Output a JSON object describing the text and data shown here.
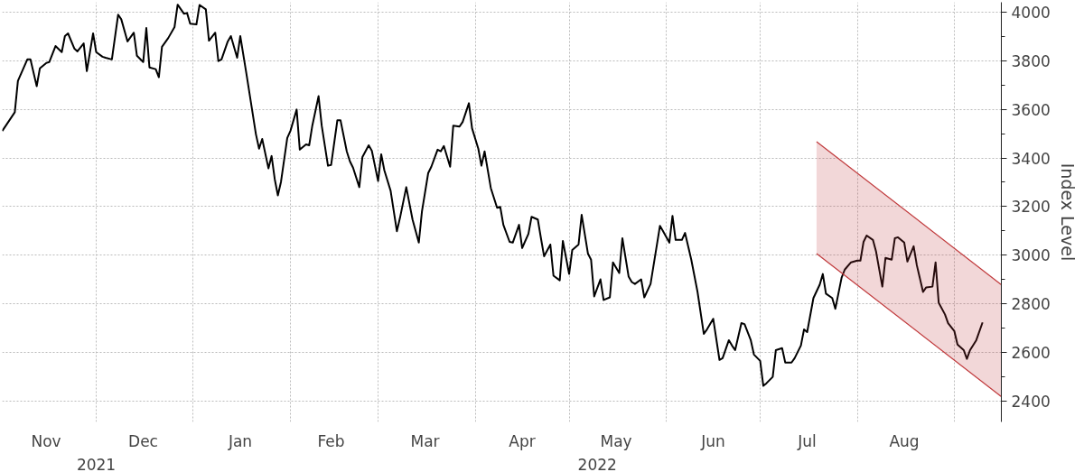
{
  "chart_data": {
    "type": "line",
    "ylabel": "Index Level",
    "xlim": [
      "2021-11-01",
      "2022-09-16"
    ],
    "ylim": [
      2315,
      4040
    ],
    "yticks": [
      2400,
      2600,
      2800,
      3000,
      3200,
      3400,
      3600,
      3800,
      4000
    ],
    "xticks": [
      {
        "value": "2021-12-01",
        "label": null
      },
      {
        "value": "2022-01-01",
        "label": null
      },
      {
        "value": "2022-02-01",
        "label": null
      },
      {
        "value": "2022-03-01",
        "label": null
      },
      {
        "value": "2022-04-01",
        "label": null
      },
      {
        "value": "2022-05-01",
        "label": null
      },
      {
        "value": "2022-06-01",
        "label": null
      },
      {
        "value": "2022-07-01",
        "label": null
      },
      {
        "value": "2022-08-01",
        "label": null
      },
      {
        "value": "2022-09-01",
        "label": null
      },
      {
        "value": "2021-11-15",
        "label": "Nov"
      },
      {
        "value": "2021-12-16",
        "label": "Dec"
      },
      {
        "value": "2022-01-16",
        "label": "Jan"
      },
      {
        "value": "2022-02-14",
        "label": "Feb"
      },
      {
        "value": "2022-03-16",
        "label": "Mar"
      },
      {
        "value": "2022-04-16",
        "label": "Apr"
      },
      {
        "value": "2022-05-16",
        "label": "May"
      },
      {
        "value": "2022-06-16",
        "label": "Jun"
      },
      {
        "value": "2022-07-16",
        "label": "Jul"
      },
      {
        "value": "2022-08-16",
        "label": "Aug"
      }
    ],
    "x2lim": [
      "2021-11-01",
      "2022-09-16"
    ],
    "x2ticks": [
      {
        "value": "2021-12-01",
        "label": "2021"
      },
      {
        "value": "2022-05-10",
        "label": "2022"
      }
    ],
    "grid": true,
    "series": [
      {
        "color": "#000000",
        "x": [
          "2021-11-01",
          "2021-11-05",
          "2021-11-06",
          "2021-11-09",
          "2021-11-10",
          "2021-11-12",
          "2021-11-13",
          "2021-11-15",
          "2021-11-16",
          "2021-11-18",
          "2021-11-20",
          "2021-11-21",
          "2021-11-22",
          "2021-11-24",
          "2021-11-25",
          "2021-11-27",
          "2021-11-28",
          "2021-11-30",
          "2021-12-01",
          "2021-12-03",
          "2021-12-04",
          "2021-12-06",
          "2021-12-08",
          "2021-12-09",
          "2021-12-11",
          "2021-12-13",
          "2021-12-14",
          "2021-12-16",
          "2021-12-17",
          "2021-12-18",
          "2021-12-20",
          "2021-12-21",
          "2021-12-22",
          "2021-12-24",
          "2021-12-26",
          "2021-12-27",
          "2021-12-29",
          "2021-12-30",
          "2021-12-31",
          "2022-01-02",
          "2022-01-03",
          "2022-01-05",
          "2022-01-06",
          "2022-01-08",
          "2022-01-09",
          "2022-01-10",
          "2022-01-12",
          "2022-01-13",
          "2022-01-15",
          "2022-01-16",
          "2022-01-18",
          "2022-01-21",
          "2022-01-22",
          "2022-01-23",
          "2022-01-25",
          "2022-01-26",
          "2022-01-27",
          "2022-01-28",
          "2022-01-29",
          "2022-01-31",
          "2022-02-01",
          "2022-02-03",
          "2022-02-04",
          "2022-02-06",
          "2022-02-07",
          "2022-02-08",
          "2022-02-10",
          "2022-02-11",
          "2022-02-13",
          "2022-02-14",
          "2022-02-16",
          "2022-02-17",
          "2022-02-19",
          "2022-02-20",
          "2022-02-21",
          "2022-02-23",
          "2022-02-24",
          "2022-02-26",
          "2022-02-27",
          "2022-03-01",
          "2022-03-02",
          "2022-03-03",
          "2022-03-05",
          "2022-03-07",
          "2022-03-08",
          "2022-03-10",
          "2022-03-11",
          "2022-03-12",
          "2022-03-14",
          "2022-03-15",
          "2022-03-17",
          "2022-03-18",
          "2022-03-20",
          "2022-03-21",
          "2022-03-22",
          "2022-03-24",
          "2022-03-25",
          "2022-03-27",
          "2022-03-28",
          "2022-03-30",
          "2022-03-31",
          "2022-04-02",
          "2022-04-03",
          "2022-04-04",
          "2022-04-06",
          "2022-04-08",
          "2022-04-09",
          "2022-04-10",
          "2022-04-12",
          "2022-04-13",
          "2022-04-15",
          "2022-04-16",
          "2022-04-18",
          "2022-04-19",
          "2022-04-21",
          "2022-04-22",
          "2022-04-23",
          "2022-04-25",
          "2022-04-26",
          "2022-04-28",
          "2022-04-29",
          "2022-05-01",
          "2022-05-02",
          "2022-05-04",
          "2022-05-05",
          "2022-05-07",
          "2022-05-08",
          "2022-05-09",
          "2022-05-11",
          "2022-05-12",
          "2022-05-14",
          "2022-05-15",
          "2022-05-17",
          "2022-05-18",
          "2022-05-20",
          "2022-05-21",
          "2022-05-22",
          "2022-05-24",
          "2022-05-25",
          "2022-05-27",
          "2022-05-30",
          "2022-05-31",
          "2022-06-02",
          "2022-06-03",
          "2022-06-04",
          "2022-06-06",
          "2022-06-07",
          "2022-06-09",
          "2022-06-11",
          "2022-06-13",
          "2022-06-14",
          "2022-06-16",
          "2022-06-18",
          "2022-06-19",
          "2022-06-21",
          "2022-06-22",
          "2022-06-23",
          "2022-06-25",
          "2022-06-26",
          "2022-06-28",
          "2022-06-29",
          "2022-07-01",
          "2022-07-02",
          "2022-07-03",
          "2022-07-05",
          "2022-07-06",
          "2022-07-08",
          "2022-07-09",
          "2022-07-11",
          "2022-07-12",
          "2022-07-14",
          "2022-07-15",
          "2022-07-16",
          "2022-07-18",
          "2022-07-20",
          "2022-07-21",
          "2022-07-22",
          "2022-07-24",
          "2022-07-25",
          "2022-07-27",
          "2022-07-28",
          "2022-07-30",
          "2022-08-01",
          "2022-08-02",
          "2022-08-03",
          "2022-08-04",
          "2022-08-06",
          "2022-08-07",
          "2022-08-09",
          "2022-08-10",
          "2022-08-12",
          "2022-08-13",
          "2022-08-14",
          "2022-08-16",
          "2022-08-17",
          "2022-08-19",
          "2022-08-20",
          "2022-08-22",
          "2022-08-23",
          "2022-08-25",
          "2022-08-26",
          "2022-08-27",
          "2022-08-29",
          "2022-08-30",
          "2022-09-01",
          "2022-09-02",
          "2022-09-04",
          "2022-09-05",
          "2022-09-06",
          "2022-09-08",
          "2022-09-10"
        ],
        "values": [
          3511,
          3588,
          3717,
          3805,
          3805,
          3695,
          3768,
          3790,
          3794,
          3860,
          3835,
          3901,
          3912,
          3850,
          3838,
          3871,
          3757,
          3912,
          3835,
          3816,
          3812,
          3805,
          3989,
          3970,
          3879,
          3915,
          3820,
          3794,
          3934,
          3772,
          3765,
          3732,
          3857,
          3893,
          3938,
          4030,
          3993,
          3996,
          3952,
          3949,
          4029,
          4011,
          3882,
          3915,
          3798,
          3805,
          3879,
          3901,
          3812,
          3901,
          3743,
          3497,
          3438,
          3478,
          3357,
          3408,
          3313,
          3246,
          3302,
          3482,
          3511,
          3599,
          3434,
          3456,
          3452,
          3533,
          3654,
          3533,
          3368,
          3371,
          3555,
          3555,
          3427,
          3386,
          3360,
          3280,
          3404,
          3452,
          3430,
          3305,
          3415,
          3349,
          3265,
          3099,
          3154,
          3280,
          3213,
          3147,
          3052,
          3180,
          3338,
          3364,
          3434,
          3427,
          3449,
          3364,
          3533,
          3529,
          3548,
          3625,
          3522,
          3438,
          3368,
          3427,
          3276,
          3195,
          3199,
          3125,
          3055,
          3052,
          3125,
          3030,
          3088,
          3158,
          3147,
          3070,
          2996,
          3044,
          2916,
          2897,
          3059,
          2923,
          3022,
          3044,
          3166,
          3007,
          2982,
          2831,
          2901,
          2816,
          2827,
          2971,
          2927,
          3070,
          2912,
          2890,
          2882,
          2901,
          2827,
          2882,
          3121,
          3099,
          3052,
          3162,
          3063,
          3063,
          3092,
          2982,
          2849,
          2677,
          2695,
          2739,
          2570,
          2577,
          2651,
          2629,
          2610,
          2721,
          2717,
          2651,
          2592,
          2566,
          2463,
          2474,
          2500,
          2610,
          2618,
          2559,
          2559,
          2577,
          2629,
          2695,
          2684,
          2824,
          2879,
          2923,
          2842,
          2824,
          2780,
          2908,
          2941,
          2971,
          2978,
          2978,
          3055,
          3081,
          3063,
          3015,
          2871,
          2989,
          2982,
          3070,
          3074,
          3052,
          2974,
          3037,
          2960,
          2849,
          2868,
          2871,
          2971,
          2805,
          2757,
          2721,
          2688,
          2633,
          2610,
          2574,
          2610,
          2651,
          2724
        ]
      },
      {
        "color": "#c0393b",
        "x": [
          "2022-07-19",
          "2022-09-16"
        ],
        "values": [
          3467,
          2879
        ],
        "lower": [
          3007,
          2419
        ],
        "upper": [
          3467,
          2879
        ]
      },
      {
        "color": "#c0393b",
        "x": [
          "2022-07-19",
          "2022-09-16"
        ],
        "values": [
          3007,
          2419
        ]
      }
    ]
  }
}
